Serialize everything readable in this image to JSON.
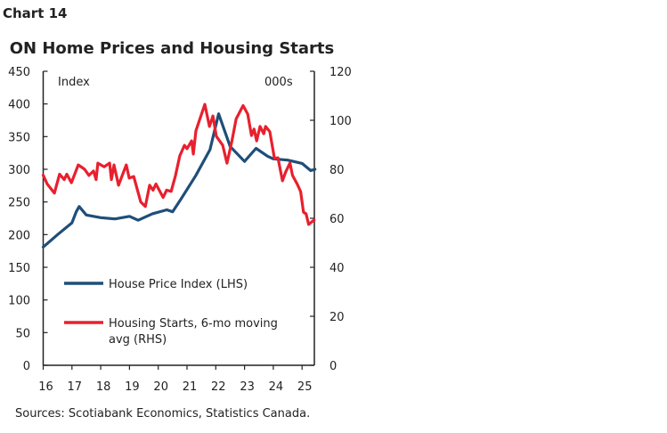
{
  "chart_label": "Chart 14",
  "source": "Sources: Scotiabank Economics, Statistics Canada.",
  "chart_data": {
    "type": "line",
    "title": "ON Home Prices and Housing Starts",
    "ylabel_left": "Index",
    "ylabel_right": "000s",
    "xlim": [
      2016,
      2025.45
    ],
    "ylim_left": [
      0,
      450
    ],
    "ylim_right": [
      0,
      120
    ],
    "x_ticks": [
      2016,
      2017,
      2018,
      2019,
      2020,
      2021,
      2022,
      2023,
      2024,
      2025
    ],
    "x_tick_labels": [
      "16",
      "17",
      "18",
      "19",
      "20",
      "21",
      "22",
      "23",
      "24",
      "25"
    ],
    "y_left_ticks": [
      "0",
      "50",
      "100",
      "150",
      "200",
      "250",
      "300",
      "350",
      "400",
      "450"
    ],
    "y_right_ticks": [
      "0",
      "20",
      "40",
      "60",
      "80",
      "100",
      "120"
    ],
    "grid": false,
    "legend": "inside-bottom-left",
    "series": [
      {
        "name": "House Price Index (LHS)",
        "axis": "left",
        "color": "#1f4e79",
        "points": [
          [
            2016.0,
            181
          ],
          [
            2016.5,
            200
          ],
          [
            2017.0,
            218
          ],
          [
            2017.15,
            235
          ],
          [
            2017.25,
            243
          ],
          [
            2017.5,
            230
          ],
          [
            2018.0,
            226
          ],
          [
            2018.5,
            224
          ],
          [
            2019.0,
            228
          ],
          [
            2019.3,
            222
          ],
          [
            2019.8,
            232
          ],
          [
            2020.3,
            238
          ],
          [
            2020.5,
            235
          ],
          [
            2020.8,
            255
          ],
          [
            2021.3,
            290
          ],
          [
            2021.8,
            330
          ],
          [
            2022.1,
            385
          ],
          [
            2022.5,
            335
          ],
          [
            2023.0,
            312
          ],
          [
            2023.4,
            332
          ],
          [
            2023.8,
            320
          ],
          [
            2024.0,
            316
          ],
          [
            2024.5,
            314
          ],
          [
            2025.0,
            309
          ],
          [
            2025.3,
            298
          ],
          [
            2025.45,
            300
          ]
        ]
      },
      {
        "name": "Housing Starts, 6-mo moving avg (RHS)",
        "legend_lines": [
          "Housing Starts, 6-mo moving",
          "avg (RHS)"
        ],
        "axis": "right",
        "color": "#e8202e",
        "points": [
          [
            2016.0,
            77.6
          ],
          [
            2016.14,
            74
          ],
          [
            2016.39,
            70.3
          ],
          [
            2016.57,
            78
          ],
          [
            2016.73,
            75.8
          ],
          [
            2016.82,
            78
          ],
          [
            2016.98,
            74.5
          ],
          [
            2017.22,
            81.8
          ],
          [
            2017.44,
            80
          ],
          [
            2017.59,
            77.5
          ],
          [
            2017.75,
            79.3
          ],
          [
            2017.84,
            75.8
          ],
          [
            2017.9,
            82.5
          ],
          [
            2018.12,
            81
          ],
          [
            2018.31,
            82.5
          ],
          [
            2018.37,
            75.8
          ],
          [
            2018.46,
            81.8
          ],
          [
            2018.62,
            73.5
          ],
          [
            2018.89,
            81.8
          ],
          [
            2018.99,
            76.4
          ],
          [
            2019.15,
            77
          ],
          [
            2019.39,
            66.7
          ],
          [
            2019.55,
            64.8
          ],
          [
            2019.7,
            73.5
          ],
          [
            2019.82,
            71.5
          ],
          [
            2019.92,
            74
          ],
          [
            2020.17,
            68.5
          ],
          [
            2020.29,
            71.5
          ],
          [
            2020.45,
            71
          ],
          [
            2020.6,
            77.5
          ],
          [
            2020.75,
            85.5
          ],
          [
            2020.91,
            89.8
          ],
          [
            2021.0,
            88.4
          ],
          [
            2021.16,
            91.6
          ],
          [
            2021.22,
            86.2
          ],
          [
            2021.31,
            95.7
          ],
          [
            2021.46,
            101
          ],
          [
            2021.62,
            106.5
          ],
          [
            2021.78,
            97.5
          ],
          [
            2021.9,
            101.8
          ],
          [
            2022.02,
            93.5
          ],
          [
            2022.24,
            89.8
          ],
          [
            2022.39,
            82.5
          ],
          [
            2022.55,
            91
          ],
          [
            2022.71,
            100.6
          ],
          [
            2022.95,
            106
          ],
          [
            2023.11,
            102.5
          ],
          [
            2023.24,
            93.8
          ],
          [
            2023.33,
            96.4
          ],
          [
            2023.42,
            91.6
          ],
          [
            2023.54,
            97.5
          ],
          [
            2023.67,
            94.5
          ],
          [
            2023.73,
            97.5
          ],
          [
            2023.88,
            95.3
          ],
          [
            2024.04,
            84.4
          ],
          [
            2024.16,
            84.7
          ],
          [
            2024.32,
            75.3
          ],
          [
            2024.43,
            78.9
          ],
          [
            2024.58,
            82.5
          ],
          [
            2024.67,
            77.5
          ],
          [
            2024.83,
            74
          ],
          [
            2024.95,
            70.9
          ],
          [
            2025.05,
            62.5
          ],
          [
            2025.14,
            61.8
          ],
          [
            2025.23,
            57.5
          ],
          [
            2025.42,
            59.3
          ]
        ]
      }
    ]
  }
}
